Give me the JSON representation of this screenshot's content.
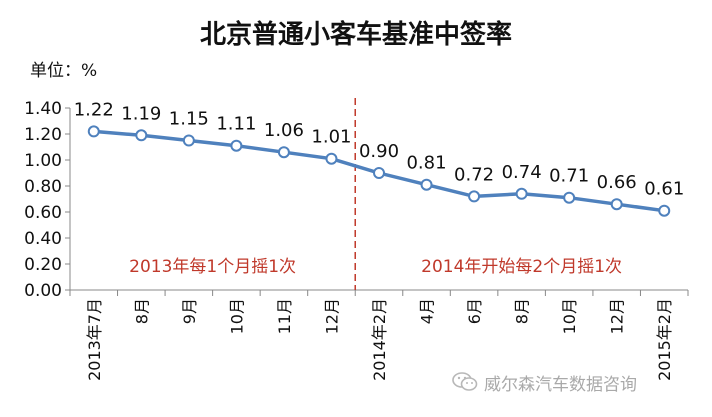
{
  "chart_data": {
    "type": "line",
    "title": "北京普通小客车基准中签率",
    "unit_label": "单位：%",
    "categories": [
      "2013年7月",
      "8月",
      "9月",
      "10月",
      "11月",
      "12月",
      "2014年2月",
      "4月",
      "6月",
      "8月",
      "10月",
      "12月",
      "2015年2月"
    ],
    "values": [
      1.22,
      1.19,
      1.15,
      1.11,
      1.06,
      1.01,
      0.9,
      0.81,
      0.72,
      0.74,
      0.71,
      0.66,
      0.61
    ],
    "data_labels": [
      "1.22",
      "1.19",
      "1.15",
      "1.11",
      "1.06",
      "1.01",
      "0.90",
      "0.81",
      "0.72",
      "0.74",
      "0.71",
      "0.66",
      "0.61"
    ],
    "ylim": [
      0,
      1.4
    ],
    "yticks": [
      "0.00",
      "0.20",
      "0.40",
      "0.60",
      "0.80",
      "1.00",
      "1.20",
      "1.40"
    ],
    "grid": false,
    "legend": "none",
    "series_color": "#4f81bd",
    "annotations": [
      {
        "text": "2013年每1个月摇1次",
        "color": "#c0392b"
      },
      {
        "text": "2014年开始每2个月摇1次",
        "color": "#c0392b"
      }
    ],
    "divider_color": "#c0392b"
  },
  "watermark": {
    "icon": "wechat-icon",
    "text": "威尔森汽车数据咨询"
  }
}
